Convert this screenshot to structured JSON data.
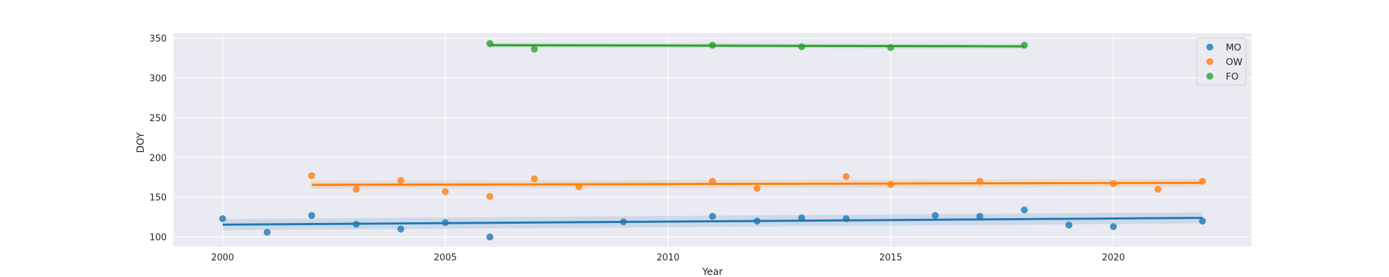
{
  "chart_data": {
    "type": "scatter",
    "xlabel": "Year",
    "ylabel": "DOY",
    "xlim": [
      1998.9,
      2023.1
    ],
    "ylim": [
      88,
      356
    ],
    "xticks": [
      2000,
      2005,
      2010,
      2015,
      2020
    ],
    "yticks": [
      100,
      150,
      200,
      250,
      300,
      350
    ],
    "grid": true,
    "legend_position": "top-right",
    "series": [
      {
        "name": "MO",
        "color": "#1f77b4",
        "points": [
          [
            2000,
            123
          ],
          [
            2001,
            106
          ],
          [
            2002,
            127
          ],
          [
            2003,
            116
          ],
          [
            2004,
            110
          ],
          [
            2005,
            118
          ],
          [
            2006,
            100
          ],
          [
            2009,
            119
          ],
          [
            2011,
            126
          ],
          [
            2012,
            120
          ],
          [
            2013,
            124
          ],
          [
            2014,
            123
          ],
          [
            2016,
            127
          ],
          [
            2017,
            126
          ],
          [
            2018,
            134
          ],
          [
            2019,
            115
          ],
          [
            2020,
            113
          ],
          [
            2022,
            120
          ]
        ],
        "fit": [
          [
            2000,
            115.5
          ],
          [
            2022,
            124
          ]
        ],
        "ci_width": 7
      },
      {
        "name": "OW",
        "color": "#ff7f0e",
        "points": [
          [
            2002,
            177
          ],
          [
            2003,
            160
          ],
          [
            2004,
            171
          ],
          [
            2005,
            157
          ],
          [
            2006,
            151
          ],
          [
            2007,
            173
          ],
          [
            2008,
            163
          ],
          [
            2011,
            170
          ],
          [
            2012,
            161
          ],
          [
            2014,
            176
          ],
          [
            2015,
            166
          ],
          [
            2017,
            170
          ],
          [
            2020,
            167
          ],
          [
            2021,
            160
          ],
          [
            2022,
            170
          ]
        ],
        "fit": [
          [
            2002,
            165.5
          ],
          [
            2022,
            168
          ]
        ],
        "ci_width": 5
      },
      {
        "name": "FO",
        "color": "#2ca02c",
        "points": [
          [
            2006,
            343
          ],
          [
            2007,
            336
          ],
          [
            2011,
            341
          ],
          [
            2013,
            339
          ],
          [
            2015,
            338
          ],
          [
            2018,
            341
          ]
        ],
        "fit": [
          [
            2006,
            341
          ],
          [
            2018,
            339.5
          ]
        ],
        "ci_width": 3
      }
    ]
  }
}
